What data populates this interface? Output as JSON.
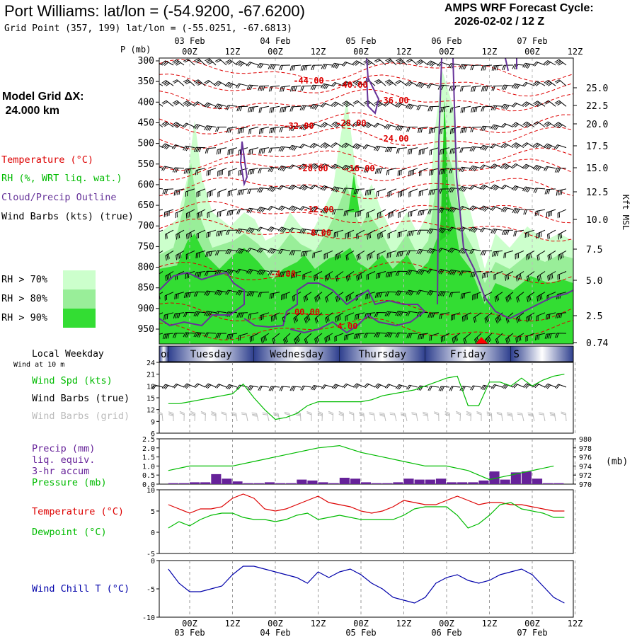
{
  "header": {
    "title": "Port Williams:  lat/lon = (-54.9200, -67.6200)",
    "subtitle": "Grid Point (357, 199) lat/lon = (-55.0251, -67.6813)",
    "forecast_label": "AMPS WRF Forecast Cycle:",
    "forecast_cycle": "2026-02-02 / 12  Z"
  },
  "left_panel": {
    "grid_label": "Model Grid ΔX:",
    "grid_value": " 24.000 km",
    "legend": {
      "temperature": "Temperature (°C)",
      "rh": "RH (%, WRT liq. wat.)",
      "cloud": "Cloud/Precip Outline",
      "wind": "Wind Barbs (kts) (true)"
    },
    "rh_levels": [
      {
        "label": "RH > 70%",
        "color": "#ccffcc"
      },
      {
        "label": "RH > 80%",
        "color": "#99ee99"
      },
      {
        "label": "RH > 90%",
        "color": "#33dd33"
      }
    ]
  },
  "colors": {
    "temp": "#dd0000",
    "rh": "#00bb00",
    "cloud": "#663399",
    "precip_bar": "#662299",
    "chill": "#0000aa",
    "grid": "#999999"
  },
  "time_axis": {
    "top_hours": [
      "00Z",
      "12Z",
      "00Z",
      "12Z",
      "00Z",
      "12Z",
      "00Z",
      "12Z",
      "00Z",
      "12Z"
    ],
    "top_dates": [
      "03 Feb",
      "04 Feb",
      "05 Feb",
      "06 Feb",
      "07 Feb"
    ],
    "bottom_hours": [
      "00Z",
      "12Z",
      "00Z",
      "12Z",
      "00Z",
      "12Z",
      "00Z",
      "12Z",
      "00Z",
      "12Z"
    ],
    "bottom_dates": [
      "03 Feb",
      "04 Feb",
      "05 Feb",
      "06 Feb",
      "07 Feb"
    ],
    "weekdays": [
      "onday",
      "Tuesday",
      "Wednesday",
      "Thursday",
      "Friday",
      "S"
    ]
  },
  "sounding": {
    "p_label": "P (mb)",
    "p_levels": [
      "300",
      "350",
      "400",
      "450",
      "500",
      "550",
      "600",
      "650",
      "700",
      "750",
      "800",
      "850",
      "900",
      "950"
    ],
    "height_axis_title": "Kft MSL",
    "heights": [
      "25.0",
      "22.5",
      "20.0",
      "17.5",
      "15.0",
      "12.5",
      "10.0",
      "7.5",
      "5.0",
      "2.5",
      "0.74"
    ],
    "temp_labels": [
      "-44.00",
      "-40.00",
      "-36.00",
      "-32.00",
      "-28.00",
      "-24.00",
      "-20.00",
      "-16.00",
      "-12.00",
      "-8.00",
      "-4.00",
      "00.00",
      "4.00"
    ]
  },
  "panels": {
    "weekday_title": "Local Weekday",
    "wind10_title": "Wind at 10 m",
    "wind_spd": "Wind Spd (kts)",
    "wind_barbs": "Wind Barbs (true)",
    "wind_barbs_grid": "Wind Barbs (grid)",
    "precip_l1": "Precip (mm)",
    "precip_l2": "liq. equiv.",
    "precip_l3": "3-hr accum",
    "pressure": "Pressure (mb)",
    "pressure_unit": "(mb)",
    "temperature": "Temperature (°C)",
    "dewpoint": "Dewpoint (°C)",
    "windchill": "Wind Chill T (°C)"
  },
  "chart_data": [
    {
      "type": "line",
      "title": "Wind Spd (kts)",
      "ylim": [
        6,
        24
      ],
      "yticks": [
        "24",
        "21",
        "18",
        "15",
        "12",
        "9",
        "6"
      ],
      "x_hours_from_03Feb00Z": [
        -12,
        -9,
        -6,
        -3,
        0,
        3,
        6,
        9,
        12,
        15,
        18,
        21,
        24,
        27,
        30,
        33,
        36,
        39,
        42,
        45,
        48,
        51,
        54,
        57,
        60,
        63,
        66,
        69,
        72,
        75,
        78,
        81,
        84,
        87,
        90,
        93,
        96,
        99,
        102,
        105,
        108
      ],
      "values": [
        12,
        12,
        13.5,
        13.5,
        14,
        14.5,
        15,
        15.5,
        16,
        18.5,
        15,
        12,
        9.5,
        10,
        11,
        13,
        14,
        14,
        14,
        14,
        14,
        14.5,
        15.5,
        16,
        16.5,
        17,
        18,
        19,
        20,
        20.5,
        13,
        13,
        19,
        19,
        18,
        20,
        18,
        19.5,
        20.5,
        21,
        21
      ]
    },
    {
      "type": "bar",
      "title": "Precip (mm) liq. equiv. 3-hr accum",
      "ylim": [
        0,
        2.5
      ],
      "yticks": [
        "2.5",
        "2.0",
        "1.5",
        "1.0",
        "0.5",
        "0.0"
      ],
      "x_hours_from_03Feb00Z": [
        -12,
        -9,
        -6,
        -3,
        0,
        3,
        6,
        9,
        12,
        15,
        18,
        21,
        24,
        27,
        30,
        33,
        36,
        39,
        42,
        45,
        48,
        51,
        54,
        57,
        60,
        63,
        66,
        69,
        72,
        75,
        78,
        81,
        84,
        87,
        90,
        93,
        96,
        99,
        102,
        105,
        108
      ],
      "values": [
        0.05,
        0.05,
        0.05,
        0.05,
        0.1,
        0.1,
        0.55,
        0.3,
        0.15,
        0.05,
        0.05,
        0.1,
        0.05,
        0.05,
        0.25,
        0.2,
        0.1,
        0.05,
        0.35,
        0.3,
        0.1,
        0.05,
        0.05,
        0.1,
        0.3,
        0.25,
        0.25,
        0.3,
        0.1,
        0.1,
        0.1,
        0.2,
        0.7,
        0.25,
        0.65,
        0.7,
        0.3,
        0.05,
        0.05,
        0.05,
        0.05
      ]
    },
    {
      "type": "line",
      "title": "Pressure (mb)",
      "ylim": [
        970,
        980
      ],
      "yticks": [
        "980",
        "978",
        "976",
        "974",
        "972",
        "970"
      ],
      "x_hours_from_03Feb00Z": [
        -12,
        -6,
        0,
        6,
        12,
        18,
        24,
        30,
        36,
        42,
        48,
        54,
        60,
        66,
        72,
        78,
        84,
        90,
        96,
        102,
        108
      ],
      "values": [
        972.5,
        973,
        974,
        974,
        974,
        975,
        976,
        977,
        978,
        978.5,
        977,
        976,
        975,
        974,
        974,
        973,
        971,
        972,
        973,
        974,
        974.5
      ]
    },
    {
      "type": "line",
      "title": "Temperature / Dewpoint (°C)",
      "ylim": [
        -5,
        10
      ],
      "yticks": [
        "10",
        "5",
        "0",
        "-5"
      ],
      "x_hours_from_03Feb00Z": [
        -12,
        -9,
        -6,
        -3,
        0,
        3,
        6,
        9,
        12,
        15,
        18,
        21,
        24,
        27,
        30,
        33,
        36,
        39,
        42,
        45,
        48,
        51,
        54,
        57,
        60,
        63,
        66,
        69,
        72,
        75,
        78,
        81,
        84,
        87,
        90,
        93,
        96,
        99,
        102,
        105,
        108
      ],
      "series": [
        {
          "name": "Temperature",
          "values": [
            7,
            8,
            6.5,
            5.5,
            4.5,
            5.5,
            5.5,
            6,
            8,
            9,
            8,
            5.5,
            5,
            5.5,
            6.5,
            7.5,
            8.5,
            7,
            6.5,
            6,
            5,
            4.5,
            5,
            6,
            7.5,
            7,
            6.5,
            6.5,
            7.5,
            8.5,
            7.5,
            6.5,
            7,
            7,
            6.5,
            6.5,
            6,
            5.5,
            5,
            5,
            6
          ]
        },
        {
          "name": "Dewpoint",
          "values": [
            0,
            1.5,
            1,
            2.5,
            1.5,
            3,
            4,
            4.5,
            4.5,
            3.5,
            3,
            3,
            2.5,
            3,
            4,
            4.5,
            3,
            3.5,
            4,
            3.5,
            3,
            3,
            3,
            3,
            4,
            5.5,
            6,
            6,
            6,
            4,
            1,
            2,
            4,
            6.5,
            7,
            5.5,
            5,
            4.5,
            3.5,
            3.5,
            3.5
          ]
        }
      ]
    },
    {
      "type": "line",
      "title": "Wind Chill T (°C)",
      "ylim": [
        -10,
        0
      ],
      "yticks": [
        "0",
        "-5",
        "-10"
      ],
      "x_hours_from_03Feb00Z": [
        -12,
        -9,
        -6,
        -3,
        0,
        3,
        6,
        9,
        12,
        15,
        18,
        21,
        24,
        27,
        30,
        33,
        36,
        39,
        42,
        45,
        48,
        51,
        54,
        57,
        60,
        63,
        66,
        69,
        72,
        75,
        78,
        81,
        84,
        87,
        90,
        93,
        96,
        99,
        102,
        105,
        108
      ],
      "values": [
        -1.5,
        -1,
        -1.5,
        -4,
        -5.5,
        -5.5,
        -5,
        -4.5,
        -2.5,
        -1,
        -1,
        -1.5,
        -2,
        -2.5,
        -3,
        -4,
        -2,
        -3,
        -2,
        -1.5,
        -2.5,
        -4,
        -5,
        -6.5,
        -7,
        -7.5,
        -6.5,
        -4,
        -3,
        -2.5,
        -3.5,
        -4,
        -3.5,
        -2.5,
        -2,
        -1.5,
        -2.5,
        -4.5,
        -6.5,
        -7.5,
        -6.5
      ]
    }
  ]
}
